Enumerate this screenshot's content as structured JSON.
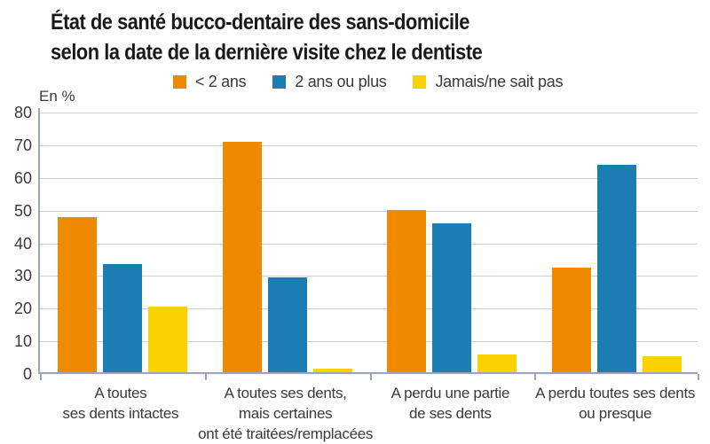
{
  "title": {
    "lines": [
      "État de santé bucco-dentaire des sans-domicile",
      "selon la date de la dernière visite chez le dentiste"
    ]
  },
  "chart_data": {
    "type": "bar",
    "title": "État de santé bucco-dentaire des sans-domicile selon la date de la dernière visite chez le dentiste",
    "unit_label": "En %",
    "categories": [
      "A toutes ses dents intactes",
      "A toutes ses dents, mais certaines ont été traitées/remplacées",
      "A perdu une partie de ses dents",
      "A perdu toutes ses dents ou presque"
    ],
    "category_display_lines": [
      [
        "A toutes",
        "ses dents intactes"
      ],
      [
        "A toutes ses dents,",
        "mais certaines",
        "ont été traitées/remplacées"
      ],
      [
        "A perdu une partie",
        "de ses dents"
      ],
      [
        "A perdu toutes ses dents",
        "ou presque"
      ]
    ],
    "series": [
      {
        "name": "< 2 ans",
        "color": "#EF8A00",
        "values": [
          47.5,
          70.5,
          49.5,
          32
        ]
      },
      {
        "name": "2 ans ou plus",
        "color": "#1C7CB4",
        "values": [
          33,
          29,
          45.5,
          63.5
        ]
      },
      {
        "name": "Jamais/ne sait pas",
        "color": "#FBD100",
        "values": [
          20,
          1,
          5.5,
          5
        ]
      }
    ],
    "ylim": [
      0,
      80
    ],
    "yticks": [
      0,
      10,
      20,
      30,
      40,
      50,
      60,
      70,
      80
    ],
    "grid": "horizontal",
    "legend_position": "top",
    "colors": {
      "gridline": "#C9CEE7",
      "axis": "#9CA3C0",
      "title_text": "#1A1A1A",
      "label_text": "#3A3A3A"
    }
  }
}
